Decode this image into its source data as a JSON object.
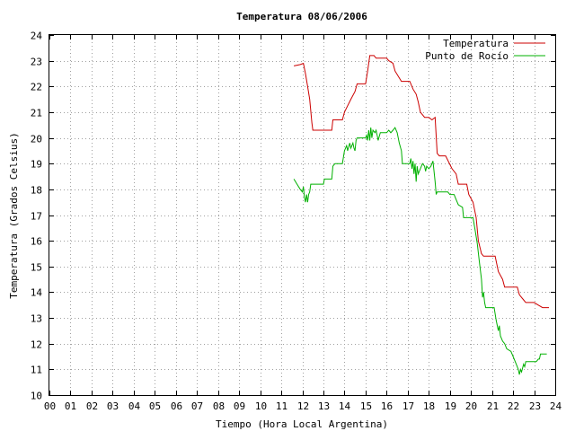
{
  "chart_data": {
    "type": "line",
    "title": "Temperatura 08/06/2006",
    "xlabel": "Tiempo (Hora Local Argentina)",
    "ylabel": "Temperatura (Grados Celsius)",
    "xlim": [
      0,
      24
    ],
    "ylim": [
      10,
      24
    ],
    "grid": true,
    "legend_position": "top-right",
    "x_tick_labels": [
      "00",
      "01",
      "02",
      "03",
      "04",
      "05",
      "06",
      "07",
      "08",
      "09",
      "10",
      "11",
      "12",
      "13",
      "14",
      "15",
      "16",
      "17",
      "18",
      "19",
      "20",
      "21",
      "22",
      "23",
      "24"
    ],
    "y_tick_labels": [
      "10",
      "11",
      "12",
      "13",
      "14",
      "15",
      "16",
      "17",
      "18",
      "19",
      "20",
      "21",
      "22",
      "23",
      "24"
    ],
    "series": [
      {
        "name": "Temperatura",
        "color": "#cc0000",
        "points": [
          [
            11.6,
            22.8
          ],
          [
            11.9,
            22.85
          ],
          [
            12.05,
            22.9
          ],
          [
            12.15,
            22.5
          ],
          [
            12.25,
            22.0
          ],
          [
            12.35,
            21.5
          ],
          [
            12.45,
            20.6
          ],
          [
            12.5,
            20.3
          ],
          [
            12.8,
            20.3
          ],
          [
            13.0,
            20.3
          ],
          [
            13.4,
            20.3
          ],
          [
            13.45,
            20.7
          ],
          [
            13.9,
            20.7
          ],
          [
            14.0,
            21.0
          ],
          [
            14.3,
            21.5
          ],
          [
            14.5,
            21.8
          ],
          [
            14.6,
            22.1
          ],
          [
            15.0,
            22.1
          ],
          [
            15.1,
            22.6
          ],
          [
            15.2,
            23.2
          ],
          [
            15.4,
            23.2
          ],
          [
            15.5,
            23.1
          ],
          [
            16.0,
            23.1
          ],
          [
            16.1,
            23.0
          ],
          [
            16.3,
            22.9
          ],
          [
            16.4,
            22.6
          ],
          [
            16.7,
            22.2
          ],
          [
            17.1,
            22.2
          ],
          [
            17.25,
            21.9
          ],
          [
            17.4,
            21.7
          ],
          [
            17.5,
            21.4
          ],
          [
            17.6,
            21.0
          ],
          [
            17.8,
            20.8
          ],
          [
            18.0,
            20.8
          ],
          [
            18.15,
            20.7
          ],
          [
            18.3,
            20.8
          ],
          [
            18.4,
            19.4
          ],
          [
            18.5,
            19.3
          ],
          [
            18.8,
            19.3
          ],
          [
            19.1,
            18.8
          ],
          [
            19.3,
            18.6
          ],
          [
            19.4,
            18.2
          ],
          [
            19.8,
            18.2
          ],
          [
            19.9,
            17.8
          ],
          [
            20.1,
            17.5
          ],
          [
            20.25,
            16.9
          ],
          [
            20.35,
            16.0
          ],
          [
            20.5,
            15.5
          ],
          [
            20.6,
            15.4
          ],
          [
            21.15,
            15.4
          ],
          [
            21.3,
            14.8
          ],
          [
            21.5,
            14.5
          ],
          [
            21.6,
            14.2
          ],
          [
            22.2,
            14.2
          ],
          [
            22.3,
            13.9
          ],
          [
            22.5,
            13.7
          ],
          [
            22.6,
            13.6
          ],
          [
            23.0,
            13.6
          ],
          [
            23.2,
            13.5
          ],
          [
            23.4,
            13.4
          ],
          [
            23.7,
            13.4
          ]
        ]
      },
      {
        "name": "Punto de Rocío",
        "color": "#00b000",
        "points": [
          [
            11.6,
            18.4
          ],
          [
            11.75,
            18.2
          ],
          [
            11.9,
            18.0
          ],
          [
            12.0,
            17.9
          ],
          [
            12.05,
            18.1
          ],
          [
            12.1,
            17.7
          ],
          [
            12.15,
            17.5
          ],
          [
            12.2,
            17.8
          ],
          [
            12.25,
            17.5
          ],
          [
            12.3,
            17.8
          ],
          [
            12.35,
            17.9
          ],
          [
            12.4,
            18.2
          ],
          [
            13.0,
            18.2
          ],
          [
            13.05,
            18.4
          ],
          [
            13.4,
            18.4
          ],
          [
            13.45,
            18.9
          ],
          [
            13.55,
            19.0
          ],
          [
            13.9,
            19.0
          ],
          [
            14.0,
            19.5
          ],
          [
            14.1,
            19.7
          ],
          [
            14.15,
            19.5
          ],
          [
            14.25,
            19.8
          ],
          [
            14.3,
            19.6
          ],
          [
            14.4,
            19.8
          ],
          [
            14.45,
            19.6
          ],
          [
            14.5,
            19.5
          ],
          [
            14.55,
            19.9
          ],
          [
            14.6,
            20.0
          ],
          [
            15.0,
            20.0
          ],
          [
            15.05,
            20.1
          ],
          [
            15.1,
            19.9
          ],
          [
            15.15,
            20.3
          ],
          [
            15.2,
            19.9
          ],
          [
            15.25,
            20.4
          ],
          [
            15.3,
            20.0
          ],
          [
            15.35,
            20.3
          ],
          [
            15.45,
            20.2
          ],
          [
            15.5,
            20.3
          ],
          [
            15.55,
            20.1
          ],
          [
            15.6,
            19.9
          ],
          [
            15.7,
            20.2
          ],
          [
            16.0,
            20.2
          ],
          [
            16.1,
            20.3
          ],
          [
            16.2,
            20.2
          ],
          [
            16.3,
            20.3
          ],
          [
            16.4,
            20.4
          ],
          [
            16.5,
            20.2
          ],
          [
            16.6,
            19.8
          ],
          [
            16.7,
            19.5
          ],
          [
            16.75,
            19.0
          ],
          [
            17.1,
            19.0
          ],
          [
            17.15,
            19.2
          ],
          [
            17.2,
            18.8
          ],
          [
            17.25,
            19.1
          ],
          [
            17.3,
            18.6
          ],
          [
            17.35,
            19.0
          ],
          [
            17.4,
            18.3
          ],
          [
            17.45,
            18.9
          ],
          [
            17.5,
            18.6
          ],
          [
            17.6,
            18.8
          ],
          [
            17.7,
            19.0
          ],
          [
            17.8,
            18.9
          ],
          [
            17.85,
            18.7
          ],
          [
            17.9,
            18.9
          ],
          [
            18.0,
            18.8
          ],
          [
            18.1,
            18.9
          ],
          [
            18.2,
            19.1
          ],
          [
            18.25,
            18.7
          ],
          [
            18.3,
            18.3
          ],
          [
            18.35,
            17.8
          ],
          [
            18.4,
            17.9
          ],
          [
            18.9,
            17.9
          ],
          [
            19.0,
            17.8
          ],
          [
            19.2,
            17.8
          ],
          [
            19.3,
            17.6
          ],
          [
            19.4,
            17.4
          ],
          [
            19.6,
            17.3
          ],
          [
            19.65,
            16.9
          ],
          [
            20.1,
            16.9
          ],
          [
            20.2,
            16.4
          ],
          [
            20.3,
            15.9
          ],
          [
            20.4,
            15.2
          ],
          [
            20.5,
            14.5
          ],
          [
            20.55,
            13.8
          ],
          [
            20.6,
            14.0
          ],
          [
            20.65,
            13.6
          ],
          [
            20.7,
            13.4
          ],
          [
            21.1,
            13.4
          ],
          [
            21.2,
            12.9
          ],
          [
            21.3,
            12.5
          ],
          [
            21.35,
            12.7
          ],
          [
            21.4,
            12.3
          ],
          [
            21.5,
            12.1
          ],
          [
            21.6,
            12.0
          ],
          [
            21.7,
            11.8
          ],
          [
            21.9,
            11.7
          ],
          [
            22.0,
            11.5
          ],
          [
            22.15,
            11.2
          ],
          [
            22.25,
            11.0
          ],
          [
            22.3,
            10.8
          ],
          [
            22.35,
            11.0
          ],
          [
            22.4,
            10.9
          ],
          [
            22.5,
            11.2
          ],
          [
            22.55,
            11.1
          ],
          [
            22.6,
            11.3
          ],
          [
            23.1,
            11.3
          ],
          [
            23.2,
            11.4
          ],
          [
            23.25,
            11.4
          ],
          [
            23.3,
            11.6
          ],
          [
            23.6,
            11.6
          ]
        ]
      }
    ]
  }
}
